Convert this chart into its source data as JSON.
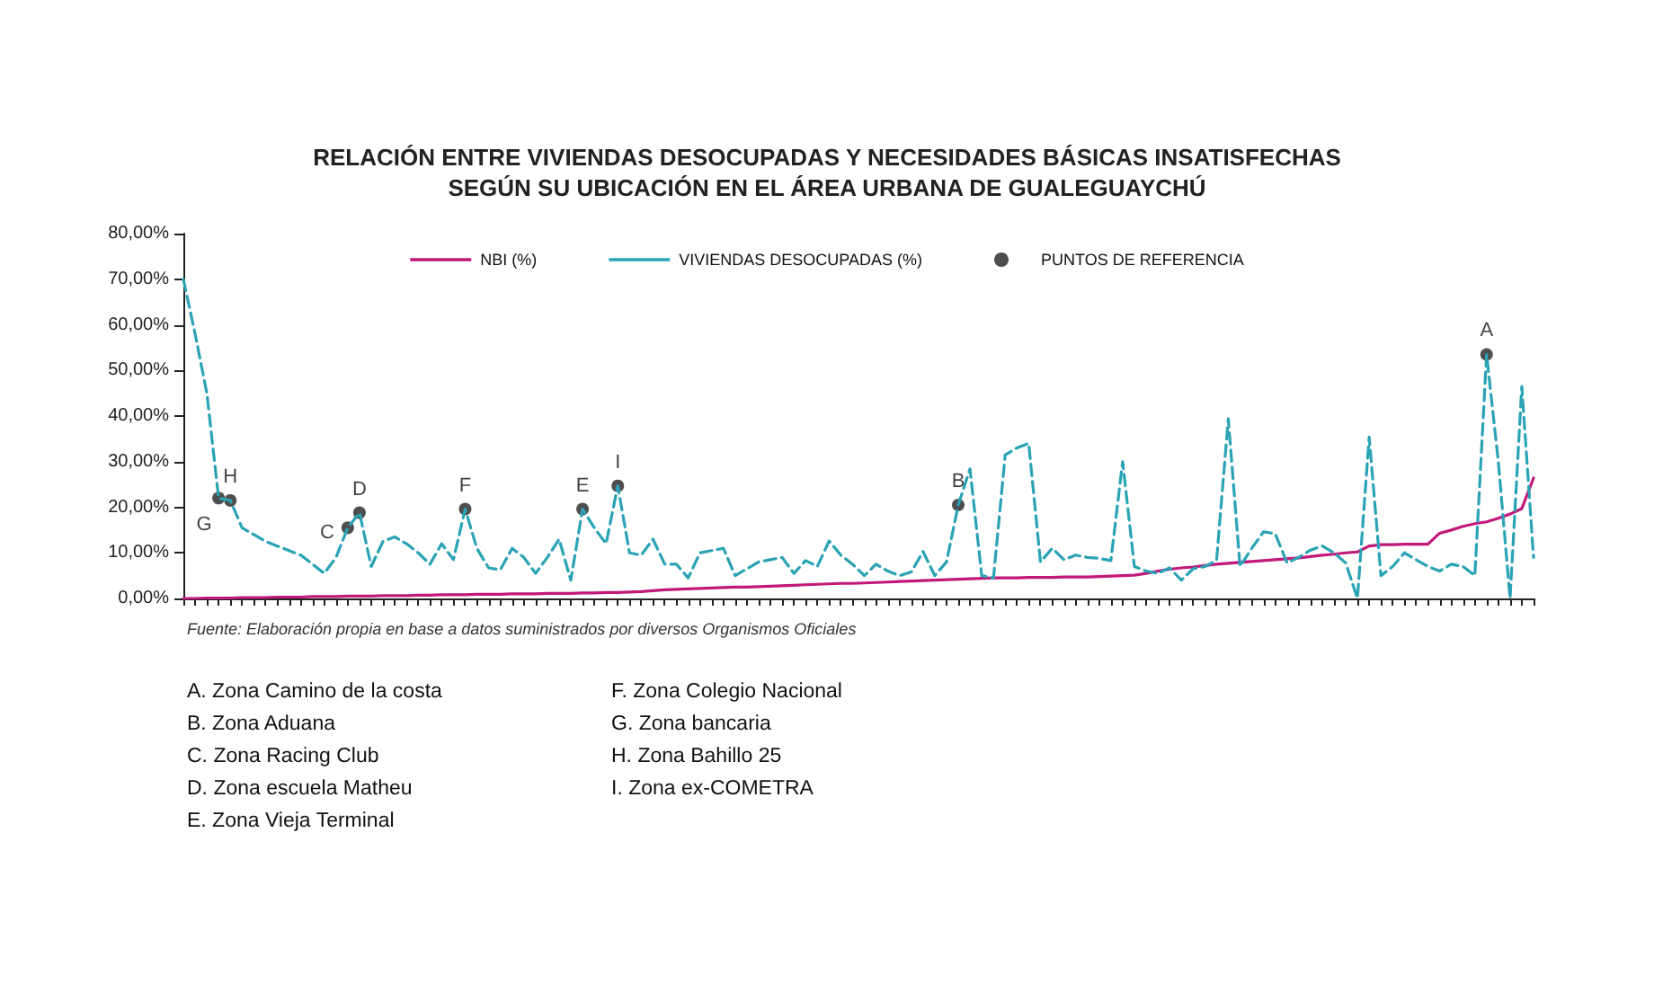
{
  "chart_data": {
    "type": "line",
    "title": "RELACIÓN ENTRE VIVIENDAS DESOCUPADAS Y NECESIDADES BÁSICAS INSATISFECHAS",
    "subtitle": "SEGÚN SU UBICACIÓN EN EL ÁREA URBANA DE GUALEGUAYCHÚ",
    "categories": [
      null,
      null,
      null,
      null,
      null,
      null,
      null,
      null,
      null,
      null,
      null,
      null,
      null,
      null,
      null,
      null,
      null,
      null,
      null,
      null,
      null,
      null,
      null,
      null,
      null,
      null,
      null,
      null,
      null,
      null,
      null,
      null,
      null,
      null,
      null,
      null,
      null,
      null,
      null,
      null,
      null,
      null,
      null,
      null,
      null,
      null,
      null,
      null,
      null,
      null,
      null,
      null,
      null,
      null,
      null,
      null,
      null,
      null,
      null,
      null,
      null,
      null,
      null,
      null,
      null,
      null,
      null,
      null,
      null,
      null,
      null,
      null,
      null,
      null,
      null,
      null,
      null,
      null,
      null,
      null,
      null,
      null,
      null,
      null,
      null,
      null,
      null,
      null,
      null,
      null,
      null,
      null,
      null,
      null,
      null,
      null,
      null,
      null,
      null,
      null,
      null,
      null,
      null,
      null,
      null,
      null,
      null,
      null,
      null,
      null,
      null,
      null,
      null,
      null,
      null,
      null
    ],
    "series": [
      {
        "name": "NBI (%)",
        "color": "#c2187a",
        "line_style": "solid",
        "marker": "none",
        "values": [
          0,
          0,
          0.1,
          0.1,
          0.1,
          0.2,
          0.2,
          0.2,
          0.3,
          0.3,
          0.3,
          0.4,
          0.4,
          0.4,
          0.5,
          0.5,
          0.5,
          0.6,
          0.6,
          0.6,
          0.7,
          0.7,
          0.8,
          0.8,
          0.8,
          0.9,
          0.9,
          0.9,
          1.0,
          1.0,
          1.0,
          1.1,
          1.1,
          1.1,
          1.2,
          1.2,
          1.3,
          1.3,
          1.4,
          1.5,
          1.7,
          1.9,
          2.0,
          2.1,
          2.2,
          2.3,
          2.4,
          2.5,
          2.5,
          2.6,
          2.7,
          2.8,
          2.9,
          3.0,
          3.1,
          3.2,
          3.3,
          3.3,
          3.4,
          3.5,
          3.6,
          3.7,
          3.8,
          3.9,
          4.0,
          4.1,
          4.2,
          4.3,
          4.4,
          4.5,
          4.5,
          4.5,
          4.6,
          4.6,
          4.6,
          4.7,
          4.7,
          4.7,
          4.8,
          4.9,
          5.0,
          5.1,
          5.5,
          6.0,
          6.4,
          6.7,
          6.9,
          7.2,
          7.5,
          7.7,
          7.9,
          8.1,
          8.3,
          8.5,
          8.7,
          8.9,
          9.2,
          9.5,
          9.7,
          10.0,
          10.2,
          11.5,
          11.8,
          11.8,
          11.9,
          11.9,
          11.9,
          14.3,
          15.0,
          15.8,
          16.4,
          16.8,
          17.6,
          18.5,
          19.7,
          26.4
        ]
      },
      {
        "name": "VIVIENDAS DESOCUPADAS (%)",
        "color": "#2aa3b5",
        "line_style": "dashed",
        "marker": "none",
        "values": [
          70,
          58,
          45,
          22,
          21.5,
          15.5,
          14,
          12.5,
          11.5,
          10.5,
          9.5,
          7.5,
          5.5,
          9,
          15.5,
          18.8,
          7,
          12.5,
          13.5,
          12,
          10,
          7.5,
          12,
          8.5,
          19.6,
          11,
          6.7,
          6.3,
          11,
          9,
          5.5,
          9,
          13,
          4,
          19.6,
          15.5,
          12,
          24.7,
          10,
          9.5,
          13,
          7.5,
          7.5,
          4.5,
          10,
          10.5,
          11,
          5,
          6.5,
          8,
          8.5,
          9,
          5.5,
          8.3,
          7,
          12.6,
          9.5,
          7.5,
          5,
          7.5,
          6,
          5,
          5.8,
          10.3,
          5,
          8,
          20.5,
          28.4,
          5,
          4.5,
          31.5,
          33,
          34,
          8,
          11,
          8.5,
          9.5,
          9,
          8.8,
          8.3,
          30,
          7,
          6,
          5.5,
          6.7,
          4,
          6.5,
          7,
          8.3,
          39.4,
          7,
          11,
          14.6,
          14.2,
          7.8,
          9,
          10.6,
          11.5,
          10,
          7.8,
          0,
          35.4,
          5,
          7,
          10,
          8.5,
          7,
          6,
          7.5,
          7,
          5,
          53.5,
          30,
          0,
          46.5,
          9
        ]
      },
      {
        "name": "PUNTOS DE REFERENCIA",
        "type": "scatter",
        "color": "#222222",
        "marker": "circle",
        "values": [
          null,
          null,
          null,
          22,
          21.5,
          null,
          null,
          null,
          null,
          null,
          null,
          null,
          null,
          null,
          15.5,
          18.8,
          null,
          null,
          null,
          null,
          null,
          null,
          null,
          null,
          19.6,
          null,
          null,
          null,
          null,
          null,
          null,
          null,
          null,
          null,
          19.6,
          null,
          null,
          24.7,
          null,
          null,
          null,
          null,
          null,
          null,
          null,
          null,
          null,
          null,
          null,
          null,
          null,
          null,
          null,
          null,
          null,
          null,
          null,
          null,
          null,
          null,
          null,
          null,
          null,
          null,
          null,
          null,
          20.5,
          null,
          null,
          null,
          null,
          null,
          null,
          null,
          null,
          null,
          null,
          null,
          null,
          null,
          null,
          null,
          null,
          null,
          null,
          null,
          null,
          null,
          null,
          null,
          null,
          null,
          null,
          null,
          null,
          null,
          null,
          null,
          null,
          null,
          null,
          null,
          null,
          null,
          null,
          null,
          null,
          null,
          null,
          null,
          null,
          53.5,
          null,
          null,
          null,
          null
        ],
        "value_labels": [
          null,
          null,
          null,
          "G",
          "H",
          null,
          null,
          null,
          null,
          null,
          null,
          null,
          null,
          null,
          "C",
          "D",
          null,
          null,
          null,
          null,
          null,
          null,
          null,
          null,
          "F",
          null,
          null,
          null,
          null,
          null,
          null,
          null,
          null,
          null,
          "E",
          null,
          null,
          "I",
          null,
          null,
          null,
          null,
          null,
          null,
          null,
          null,
          null,
          null,
          null,
          null,
          null,
          null,
          null,
          null,
          null,
          null,
          null,
          null,
          null,
          null,
          null,
          null,
          null,
          null,
          null,
          null,
          "B",
          null,
          null,
          null,
          null,
          null,
          null,
          null,
          null,
          null,
          null,
          null,
          null,
          null,
          null,
          null,
          null,
          null,
          null,
          null,
          null,
          null,
          null,
          null,
          null,
          null,
          null,
          null,
          null,
          null,
          null,
          null,
          null,
          null,
          null,
          null,
          null,
          null,
          null,
          null,
          null,
          null,
          null,
          null,
          null,
          "A",
          null,
          null,
          null,
          null
        ]
      }
    ],
    "ylim": [
      0,
      80
    ],
    "yticks": [
      {
        "value": 0,
        "label": "0,00%"
      },
      {
        "value": 10,
        "label": "10,00%"
      },
      {
        "value": 20,
        "label": "20,00%"
      },
      {
        "value": 30,
        "label": "30,00%"
      },
      {
        "value": 40,
        "label": "40,00%"
      },
      {
        "value": 50,
        "label": "50,00%"
      },
      {
        "value": 60,
        "label": "60,00%"
      },
      {
        "value": 70,
        "label": "70,00%"
      },
      {
        "value": 80,
        "label": "80,00%"
      }
    ],
    "tick_labels": "y",
    "grid": false,
    "legend": "top",
    "annotations": [
      "Fuente: Elaboración propia en base a datos suministrados por diversos Organismos Oficiales",
      "A. Zona Camino de la costa",
      "B. Zona Aduana",
      "C. Zona Racing Club",
      "D. Zona escuela Matheu",
      "E. Zona Vieja Terminal",
      "F. Zona Colegio Nacional",
      "G. Zona bancaria",
      "H. Zona Bahillo 25",
      "I. Zona ex-COMETRA"
    ]
  }
}
